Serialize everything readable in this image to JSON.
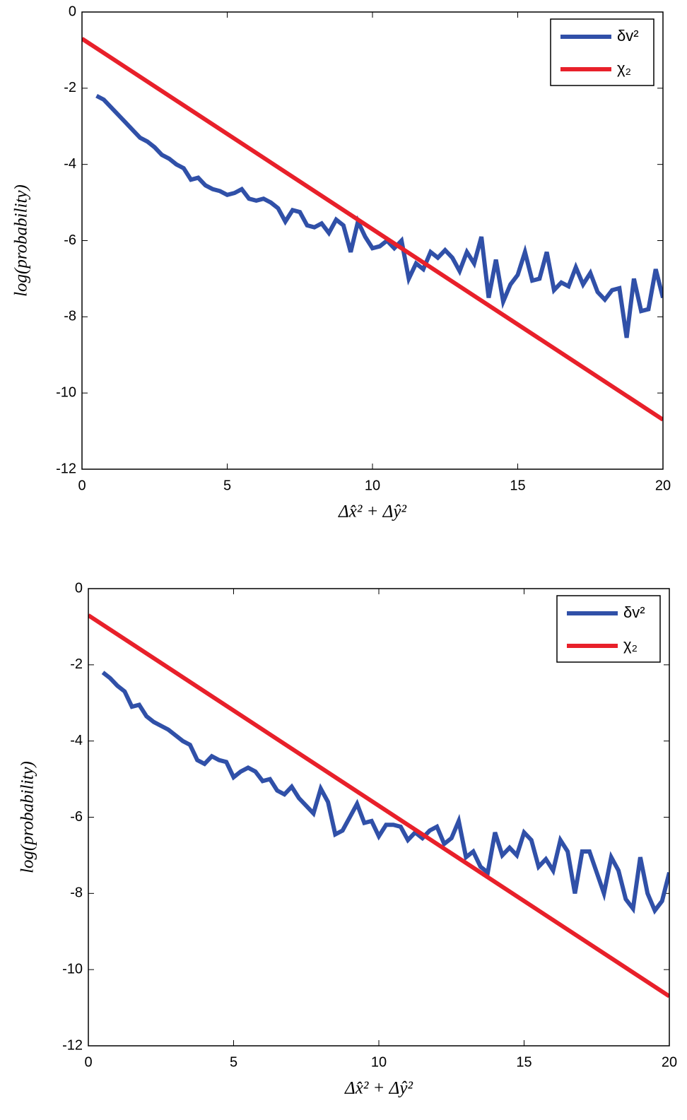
{
  "chart_data": [
    {
      "type": "line",
      "xlabel": "Δx̂² + Δŷ²",
      "ylabel": "log(probability)",
      "xlim": [
        0,
        20
      ],
      "ylim": [
        -12,
        0
      ],
      "xticks": [
        0,
        5,
        10,
        15,
        20
      ],
      "yticks": [
        -12,
        -10,
        -8,
        -6,
        -4,
        -2,
        0
      ],
      "legend": "upper right",
      "series": [
        {
          "name": "δv²",
          "color": "#3050a8",
          "x": [
            0.5,
            0.75,
            1,
            1.25,
            1.5,
            1.75,
            2,
            2.25,
            2.5,
            2.75,
            3,
            3.25,
            3.5,
            3.75,
            4,
            4.25,
            4.5,
            4.75,
            5,
            5.25,
            5.5,
            5.75,
            6,
            6.25,
            6.5,
            6.75,
            7,
            7.25,
            7.5,
            7.75,
            8,
            8.25,
            8.5,
            8.75,
            9,
            9.25,
            9.5,
            9.75,
            10,
            10.25,
            10.5,
            10.75,
            11,
            11.25,
            11.5,
            11.75,
            12,
            12.25,
            12.5,
            12.75,
            13,
            13.25,
            13.5,
            13.75,
            14,
            14.25,
            14.5,
            14.75,
            15,
            15.25,
            15.5,
            15.75,
            16,
            16.25,
            16.5,
            16.75,
            17,
            17.25,
            17.5,
            17.75,
            18,
            18.25,
            18.5,
            18.75,
            19,
            19.25,
            19.5,
            19.75,
            20
          ],
          "values": [
            -2.2,
            -2.3,
            -2.5,
            -2.7,
            -2.9,
            -3.1,
            -3.3,
            -3.4,
            -3.55,
            -3.75,
            -3.85,
            -4.0,
            -4.1,
            -4.4,
            -4.35,
            -4.55,
            -4.65,
            -4.7,
            -4.8,
            -4.75,
            -4.65,
            -4.9,
            -4.95,
            -4.9,
            -5.0,
            -5.15,
            -5.5,
            -5.2,
            -5.25,
            -5.6,
            -5.65,
            -5.55,
            -5.8,
            -5.45,
            -5.6,
            -6.3,
            -5.5,
            -5.9,
            -6.2,
            -6.15,
            -6.0,
            -6.2,
            -6.0,
            -7.0,
            -6.6,
            -6.75,
            -6.3,
            -6.45,
            -6.25,
            -6.45,
            -6.8,
            -6.3,
            -6.6,
            -5.9,
            -7.5,
            -6.5,
            -7.6,
            -7.15,
            -6.9,
            -6.3,
            -7.05,
            -7.0,
            -6.3,
            -7.3,
            -7.1,
            -7.2,
            -6.7,
            -7.15,
            -6.85,
            -7.35,
            -7.55,
            -7.3,
            -7.25,
            -8.55,
            -7.0,
            -7.85,
            -7.8,
            -6.75,
            -7.5
          ]
        },
        {
          "name": "χ₂",
          "color": "#e8202a",
          "x": [
            0,
            20
          ],
          "values": [
            -0.7,
            -10.7
          ]
        }
      ]
    },
    {
      "type": "line",
      "xlabel": "Δx̂² + Δŷ²",
      "ylabel": "log(probability)",
      "xlim": [
        0,
        20
      ],
      "ylim": [
        -12,
        0
      ],
      "xticks": [
        0,
        5,
        10,
        15,
        20
      ],
      "yticks": [
        -12,
        -10,
        -8,
        -6,
        -4,
        -2,
        0
      ],
      "legend": "upper right",
      "series": [
        {
          "name": "δv²",
          "color": "#3050a8",
          "x": [
            0.5,
            0.75,
            1,
            1.25,
            1.5,
            1.75,
            2,
            2.25,
            2.5,
            2.75,
            3,
            3.25,
            3.5,
            3.75,
            4,
            4.25,
            4.5,
            4.75,
            5,
            5.25,
            5.5,
            5.75,
            6,
            6.25,
            6.5,
            6.75,
            7,
            7.25,
            7.5,
            7.75,
            8,
            8.25,
            8.5,
            8.75,
            9,
            9.25,
            9.5,
            9.75,
            10,
            10.25,
            10.5,
            10.75,
            11,
            11.25,
            11.5,
            11.75,
            12,
            12.25,
            12.5,
            12.75,
            13,
            13.25,
            13.5,
            13.75,
            14,
            14.25,
            14.5,
            14.75,
            15,
            15.25,
            15.5,
            15.75,
            16,
            16.25,
            16.5,
            16.75,
            17,
            17.25,
            17.5,
            17.75,
            18,
            18.25,
            18.5,
            18.75,
            19,
            19.25,
            19.5,
            19.75,
            20
          ],
          "values": [
            -2.2,
            -2.35,
            -2.55,
            -2.7,
            -3.1,
            -3.05,
            -3.35,
            -3.5,
            -3.6,
            -3.7,
            -3.85,
            -4.0,
            -4.1,
            -4.5,
            -4.6,
            -4.4,
            -4.5,
            -4.55,
            -4.95,
            -4.8,
            -4.7,
            -4.8,
            -5.05,
            -5.0,
            -5.3,
            -5.4,
            -5.2,
            -5.5,
            -5.7,
            -5.9,
            -5.25,
            -5.6,
            -6.45,
            -6.35,
            -6.0,
            -5.65,
            -6.15,
            -6.1,
            -6.5,
            -6.2,
            -6.2,
            -6.25,
            -6.6,
            -6.4,
            -6.55,
            -6.35,
            -6.25,
            -6.7,
            -6.55,
            -6.1,
            -7.05,
            -6.9,
            -7.3,
            -7.45,
            -6.4,
            -7.0,
            -6.8,
            -7.0,
            -6.4,
            -6.6,
            -7.3,
            -7.1,
            -7.4,
            -6.6,
            -6.9,
            -8.0,
            -6.9,
            -6.9,
            -7.45,
            -8.0,
            -7.05,
            -7.4,
            -8.15,
            -8.4,
            -7.05,
            -8.0,
            -8.45,
            -8.2,
            -7.45
          ]
        },
        {
          "name": "χ₂",
          "color": "#e8202a",
          "x": [
            0,
            20
          ],
          "values": [
            -0.7,
            -10.7
          ]
        }
      ]
    }
  ]
}
